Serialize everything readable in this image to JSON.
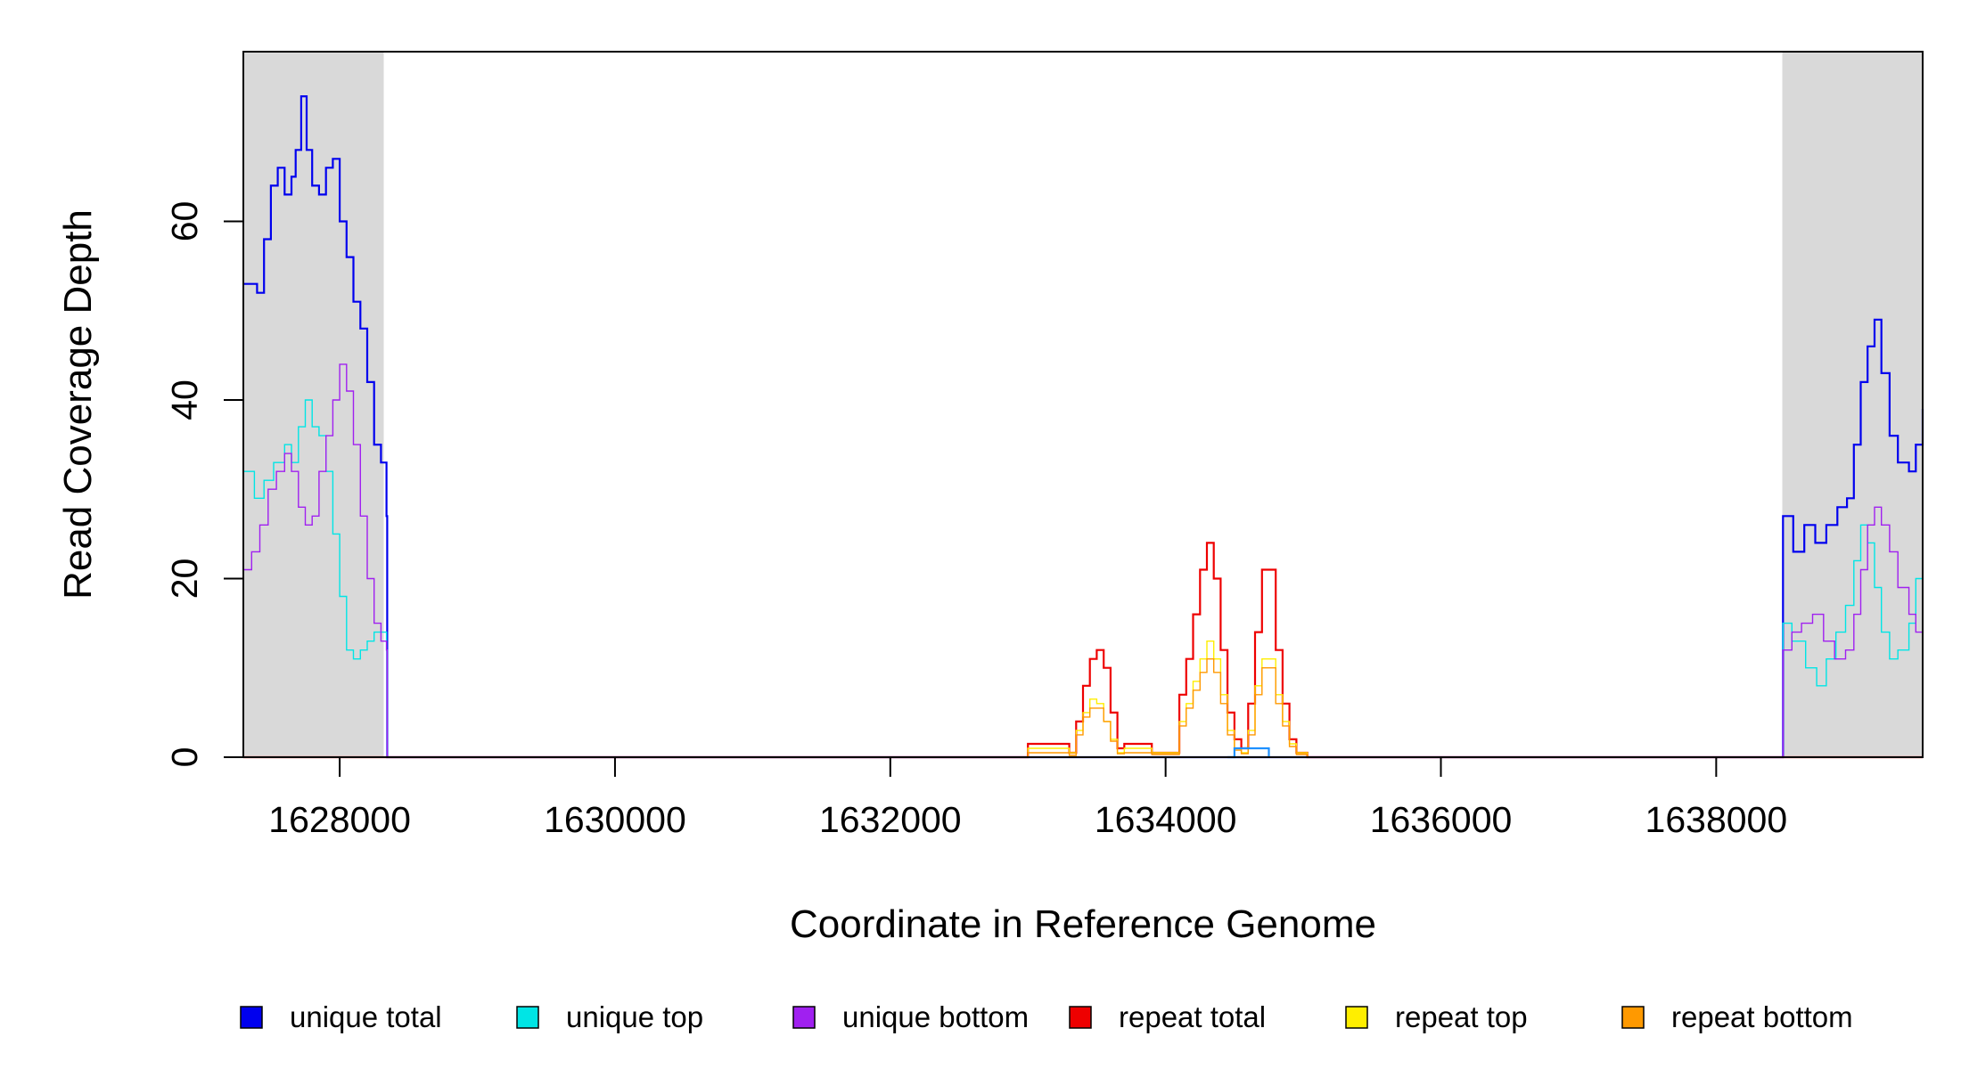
{
  "chart_data": {
    "type": "line",
    "title": "",
    "xlabel": "Coordinate in Reference Genome",
    "ylabel": "Read Coverage Depth",
    "xlim": [
      1627300,
      1639500
    ],
    "ylim": [
      0,
      79
    ],
    "x_ticks": [
      1628000,
      1630000,
      1632000,
      1634000,
      1636000,
      1638000
    ],
    "x_tick_labels": [
      "1628000",
      "1630000",
      "1632000",
      "1634000",
      "1636000",
      "1638000"
    ],
    "y_ticks": [
      0,
      20,
      40,
      60
    ],
    "y_tick_labels": [
      "0",
      "20",
      "40",
      "60"
    ],
    "shaded_regions": [
      {
        "x0": 1627300,
        "x1": 1628320,
        "color": "#d9d9d9"
      },
      {
        "x0": 1638480,
        "x1": 1639500,
        "color": "#d9d9d9"
      }
    ],
    "legend_position": "bottom",
    "series": [
      {
        "name": "unique total",
        "color": "#0000ee",
        "width": 2.2,
        "x": [
          1627300,
          1627400,
          1627450,
          1627500,
          1627550,
          1627600,
          1627650,
          1627680,
          1627720,
          1627760,
          1627800,
          1627850,
          1627900,
          1627950,
          1628000,
          1628050,
          1628100,
          1628150,
          1628200,
          1628250,
          1628300,
          1628340,
          1628345,
          1638480,
          1638485,
          1638560,
          1638640,
          1638720,
          1638800,
          1638880,
          1638950,
          1639000,
          1639050,
          1639100,
          1639150,
          1639200,
          1639260,
          1639320,
          1639400,
          1639450,
          1639500
        ],
        "y": [
          53,
          52,
          58,
          64,
          66,
          63,
          65,
          68,
          74,
          68,
          64,
          63,
          66,
          67,
          60,
          56,
          51,
          48,
          42,
          35,
          33,
          27,
          0,
          0,
          27,
          23,
          26,
          24,
          26,
          28,
          29,
          35,
          42,
          46,
          49,
          43,
          36,
          33,
          32,
          35,
          39
        ]
      },
      {
        "name": "unique top",
        "color": "#00e5e5",
        "width": 1.4,
        "x": [
          1627300,
          1627380,
          1627450,
          1627520,
          1627600,
          1627650,
          1627700,
          1627750,
          1627800,
          1627850,
          1627900,
          1627950,
          1628000,
          1628050,
          1628100,
          1628150,
          1628200,
          1628250,
          1628300,
          1628340,
          1628345,
          1638480,
          1638485,
          1638550,
          1638650,
          1638730,
          1638800,
          1638870,
          1638940,
          1639000,
          1639050,
          1639100,
          1639150,
          1639200,
          1639260,
          1639320,
          1639400,
          1639450,
          1639500
        ],
        "y": [
          32,
          29,
          31,
          33,
          35,
          33,
          37,
          40,
          37,
          36,
          32,
          25,
          18,
          12,
          11,
          12,
          13,
          14,
          14,
          12,
          0,
          0,
          15,
          13,
          10,
          8,
          11,
          14,
          17,
          22,
          26,
          24,
          19,
          14,
          11,
          12,
          15,
          20,
          22
        ]
      },
      {
        "name": "unique bottom",
        "color": "#a020f0",
        "width": 1.4,
        "x": [
          1627300,
          1627360,
          1627420,
          1627480,
          1627540,
          1627600,
          1627650,
          1627700,
          1627750,
          1627800,
          1627850,
          1627900,
          1627950,
          1628000,
          1628050,
          1628100,
          1628150,
          1628200,
          1628250,
          1628300,
          1628340,
          1628345,
          1638480,
          1638485,
          1638550,
          1638620,
          1638700,
          1638780,
          1638860,
          1638940,
          1639000,
          1639050,
          1639100,
          1639150,
          1639200,
          1639260,
          1639320,
          1639400,
          1639450,
          1639500
        ],
        "y": [
          21,
          23,
          26,
          30,
          32,
          34,
          32,
          28,
          26,
          27,
          32,
          36,
          40,
          44,
          41,
          35,
          27,
          20,
          15,
          13,
          12,
          0,
          0,
          12,
          14,
          15,
          16,
          13,
          11,
          12,
          16,
          21,
          26,
          28,
          26,
          23,
          19,
          16,
          14,
          16
        ]
      },
      {
        "name": "repeat total",
        "color": "#ee0000",
        "width": 2.2,
        "x": [
          1627300,
          1632950,
          1633000,
          1633200,
          1633300,
          1633350,
          1633400,
          1633450,
          1633500,
          1633550,
          1633600,
          1633650,
          1633700,
          1633800,
          1633900,
          1633950,
          1634000,
          1634100,
          1634150,
          1634200,
          1634250,
          1634300,
          1634350,
          1634400,
          1634450,
          1634500,
          1634550,
          1634600,
          1634650,
          1634700,
          1634750,
          1634800,
          1634850,
          1634900,
          1634950,
          1635000,
          1635030,
          1635040,
          1639500
        ],
        "y": [
          0,
          0,
          1.5,
          1.5,
          0.5,
          4,
          8,
          11,
          12,
          10,
          5,
          1,
          1.5,
          1.5,
          0.5,
          0.5,
          0.5,
          7,
          11,
          16,
          21,
          24,
          20,
          12,
          5,
          2,
          1,
          6,
          14,
          21,
          21,
          12,
          6,
          2,
          0.5,
          0.5,
          0,
          0,
          0
        ]
      },
      {
        "name": "repeat top",
        "color": "#ffee00",
        "width": 1.4,
        "x": [
          1627300,
          1632950,
          1633000,
          1633200,
          1633300,
          1633350,
          1633400,
          1633450,
          1633500,
          1633550,
          1633600,
          1633650,
          1633700,
          1633800,
          1633900,
          1633950,
          1634000,
          1634100,
          1634150,
          1634200,
          1634250,
          1634300,
          1634350,
          1634400,
          1634450,
          1634500,
          1634550,
          1634600,
          1634650,
          1634700,
          1634750,
          1634800,
          1634850,
          1634900,
          1634950,
          1635000,
          1635030,
          1635040,
          1639500
        ],
        "y": [
          0,
          0,
          1,
          1,
          0.5,
          3,
          5,
          6.5,
          6,
          4,
          2,
          0.5,
          1,
          1,
          0.5,
          0.5,
          0.5,
          4,
          6,
          8.5,
          11,
          13,
          11,
          7,
          3,
          1,
          0.5,
          3,
          8,
          11,
          11,
          7,
          4,
          1.5,
          0.5,
          0.5,
          0,
          0,
          0
        ]
      },
      {
        "name": "repeat bottom",
        "color": "#ff9900",
        "width": 1.4,
        "x": [
          1627300,
          1632950,
          1633000,
          1633200,
          1633300,
          1633350,
          1633400,
          1633450,
          1633500,
          1633550,
          1633600,
          1633650,
          1633700,
          1633800,
          1633900,
          1633950,
          1634000,
          1634100,
          1634150,
          1634200,
          1634250,
          1634300,
          1634350,
          1634400,
          1634450,
          1634500,
          1634550,
          1634600,
          1634650,
          1634700,
          1634750,
          1634800,
          1634850,
          1634900,
          1634950,
          1635000,
          1635030,
          1635040,
          1639500
        ],
        "y": [
          0,
          0,
          0.5,
          0.5,
          0.2,
          2.5,
          4.5,
          5.5,
          5.5,
          4,
          1.8,
          0.4,
          0.5,
          0.5,
          0.3,
          0.3,
          0.3,
          3.5,
          5.5,
          7.5,
          9.5,
          11,
          9.5,
          6,
          2.5,
          0.8,
          0.4,
          2.5,
          7,
          10,
          10,
          6,
          3.5,
          1.2,
          0.3,
          0.3,
          0,
          0,
          0
        ]
      },
      {
        "name": "",
        "color": "#1e90ff",
        "width": 2.2,
        "x": [
          1634450,
          1634500,
          1634700,
          1634750
        ],
        "y": [
          0,
          1,
          1,
          0
        ]
      }
    ]
  }
}
